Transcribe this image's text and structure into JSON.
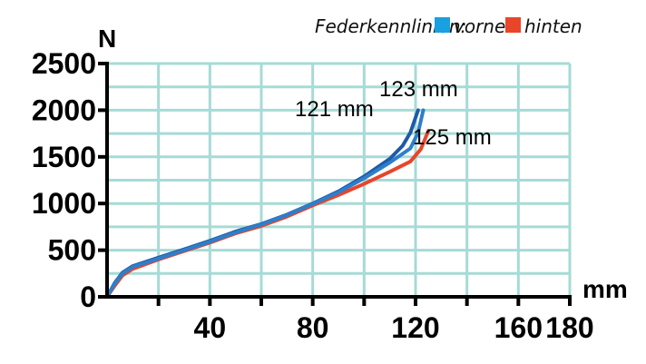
{
  "chart_data": {
    "type": "line",
    "xlabel": "mm",
    "ylabel": "N",
    "xlim": [
      0,
      180
    ],
    "ylim": [
      0,
      2500
    ],
    "x_ticks": [
      40,
      80,
      120,
      160,
      180
    ],
    "y_ticks": [
      0,
      500,
      1000,
      1500,
      2000,
      2500
    ],
    "grid": true,
    "legend": {
      "title": "Federkennlinien:",
      "position": "top-right",
      "entries": [
        {
          "label": "vorne",
          "color": "#19a0e0"
        },
        {
          "label": "hinten",
          "color": "#e8452a"
        }
      ]
    },
    "series": [
      {
        "group": "vorne",
        "color": "#1e5aa8",
        "x": [
          0,
          3,
          6,
          10,
          20,
          30,
          40,
          50,
          60,
          70,
          80,
          90,
          100,
          110,
          115,
          118,
          121
        ],
        "y": [
          0,
          150,
          260,
          330,
          420,
          510,
          600,
          700,
          780,
          880,
          1000,
          1130,
          1290,
          1480,
          1620,
          1760,
          2000
        ]
      },
      {
        "group": "vorne",
        "color": "#2f7ec9",
        "x": [
          0,
          3,
          6,
          10,
          20,
          30,
          40,
          50,
          60,
          70,
          80,
          90,
          100,
          110,
          118,
          121,
          123
        ],
        "y": [
          0,
          140,
          250,
          320,
          410,
          500,
          590,
          690,
          775,
          875,
          995,
          1120,
          1270,
          1440,
          1590,
          1760,
          2000
        ]
      },
      {
        "group": "hinten",
        "color": "#e8452a",
        "x": [
          0,
          3,
          6,
          10,
          20,
          30,
          40,
          50,
          60,
          70,
          80,
          90,
          100,
          110,
          118,
          122,
          125
        ],
        "y": [
          0,
          120,
          230,
          300,
          400,
          490,
          580,
          680,
          760,
          860,
          980,
          1090,
          1210,
          1340,
          1450,
          1580,
          1780
        ]
      }
    ],
    "annotations": [
      {
        "text": "121 mm",
        "x": 121,
        "y": 2000
      },
      {
        "text": "123 mm",
        "x": 123,
        "y": 2000
      },
      {
        "text": "125 mm",
        "x": 125,
        "y": 1780
      }
    ]
  }
}
